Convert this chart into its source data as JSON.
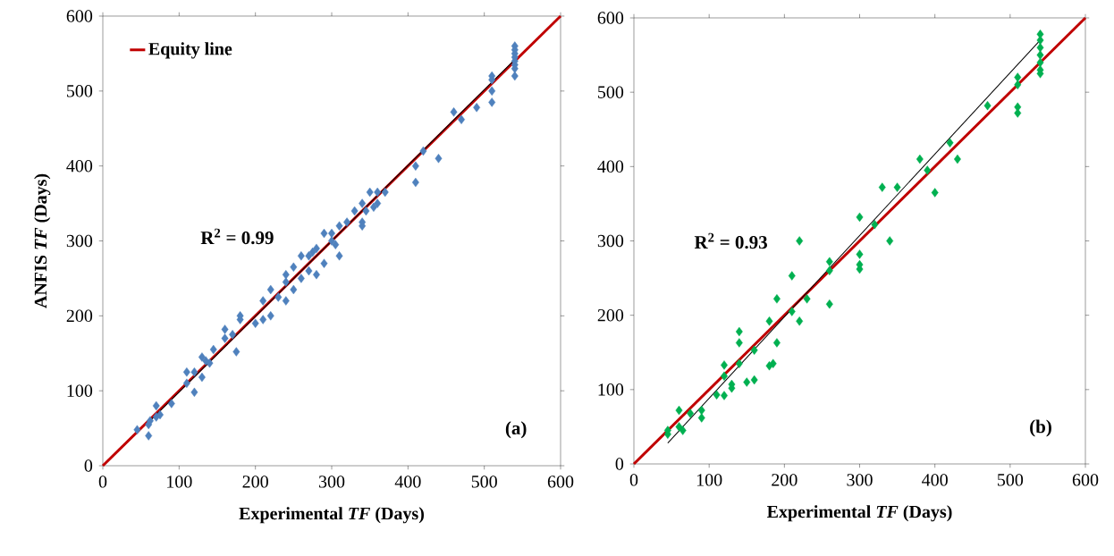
{
  "chart_data": [
    {
      "type": "scatter",
      "xlabel": "Experimental *TF* (Days)",
      "ylabel": "ANFIS *TF* (Days)",
      "xlim": [
        0,
        600
      ],
      "ylim": [
        0,
        600
      ],
      "xticks": [
        0,
        100,
        200,
        300,
        400,
        500,
        600
      ],
      "yticks": [
        0,
        100,
        200,
        300,
        400,
        500,
        600
      ],
      "legend": "top left",
      "annotations": [
        "R$^{2}$ = 0.99",
        "(a)"
      ],
      "series": [
        {
          "name": "Equity line",
          "type": "line",
          "marker": "none",
          "color": "#c00000",
          "x": [
            0,
            600
          ],
          "values": [
            0,
            600
          ]
        },
        {
          "marker": "diamond",
          "color": "#4f81bd",
          "x": [
            45,
            60,
            60,
            62,
            70,
            70,
            75,
            90,
            110,
            110,
            120,
            120,
            130,
            130,
            135,
            140,
            145,
            160,
            160,
            170,
            175,
            180,
            180,
            200,
            210,
            210,
            220,
            220,
            230,
            240,
            240,
            240,
            250,
            250,
            260,
            260,
            270,
            270,
            275,
            280,
            280,
            290,
            290,
            300,
            300,
            305,
            310,
            310,
            320,
            330,
            340,
            340,
            340,
            345,
            350,
            355,
            360,
            360,
            370,
            410,
            410,
            420,
            440,
            460,
            470,
            490,
            510,
            510,
            510,
            510,
            540,
            540,
            540,
            540,
            540,
            540,
            540,
            540
          ],
          "values": [
            48,
            55,
            40,
            60,
            80,
            65,
            68,
            83,
            110,
            125,
            98,
            125,
            145,
            118,
            140,
            137,
            155,
            170,
            182,
            175,
            152,
            195,
            200,
            190,
            195,
            220,
            200,
            235,
            225,
            245,
            220,
            255,
            235,
            265,
            250,
            280,
            280,
            260,
            285,
            255,
            290,
            310,
            270,
            310,
            300,
            295,
            320,
            280,
            325,
            340,
            350,
            325,
            320,
            340,
            365,
            345,
            350,
            365,
            365,
            400,
            378,
            420,
            410,
            472,
            462,
            478,
            485,
            500,
            520,
            515,
            560,
            550,
            540,
            530,
            520,
            545,
            555,
            535
          ]
        },
        {
          "type": "line",
          "marker": "none",
          "color": "#000000",
          "x": [
            60,
            540
          ],
          "values": [
            58,
            542
          ]
        }
      ]
    },
    {
      "type": "scatter",
      "xlabel": "Experimental *TF* (Days)",
      "xlim": [
        0,
        600
      ],
      "ylim": [
        0,
        600
      ],
      "xticks": [
        0,
        100,
        200,
        300,
        400,
        500,
        600
      ],
      "yticks": [
        0,
        100,
        200,
        300,
        400,
        500,
        600
      ],
      "annotations": [
        "R$^{2}$ = 0.93",
        "(b)"
      ],
      "series": [
        {
          "type": "line",
          "marker": "none",
          "color": "#c00000",
          "x": [
            0,
            600
          ],
          "values": [
            0,
            600
          ]
        },
        {
          "marker": "diamond",
          "color": "#00b050",
          "x": [
            45,
            45,
            60,
            60,
            65,
            75,
            90,
            90,
            110,
            120,
            120,
            120,
            130,
            130,
            140,
            140,
            140,
            150,
            160,
            160,
            180,
            180,
            185,
            190,
            190,
            210,
            210,
            220,
            220,
            230,
            260,
            260,
            260,
            300,
            300,
            300,
            300,
            320,
            330,
            340,
            350,
            380,
            390,
            400,
            420,
            430,
            470,
            510,
            510,
            510,
            510,
            540,
            540,
            540,
            540,
            540,
            540,
            540
          ],
          "values": [
            40,
            45,
            72,
            50,
            45,
            68,
            62,
            72,
            93,
            133,
            92,
            118,
            107,
            102,
            178,
            163,
            135,
            110,
            113,
            153,
            192,
            132,
            135,
            222,
            163,
            253,
            205,
            300,
            192,
            222,
            272,
            260,
            215,
            332,
            282,
            268,
            262,
            322,
            372,
            300,
            372,
            410,
            395,
            365,
            432,
            410,
            482,
            520,
            510,
            480,
            472,
            578,
            570,
            560,
            550,
            540,
            530,
            525
          ]
        },
        {
          "type": "line",
          "marker": "none",
          "color": "#000000",
          "x": [
            45,
            540
          ],
          "values": [
            28,
            570
          ]
        }
      ]
    }
  ]
}
